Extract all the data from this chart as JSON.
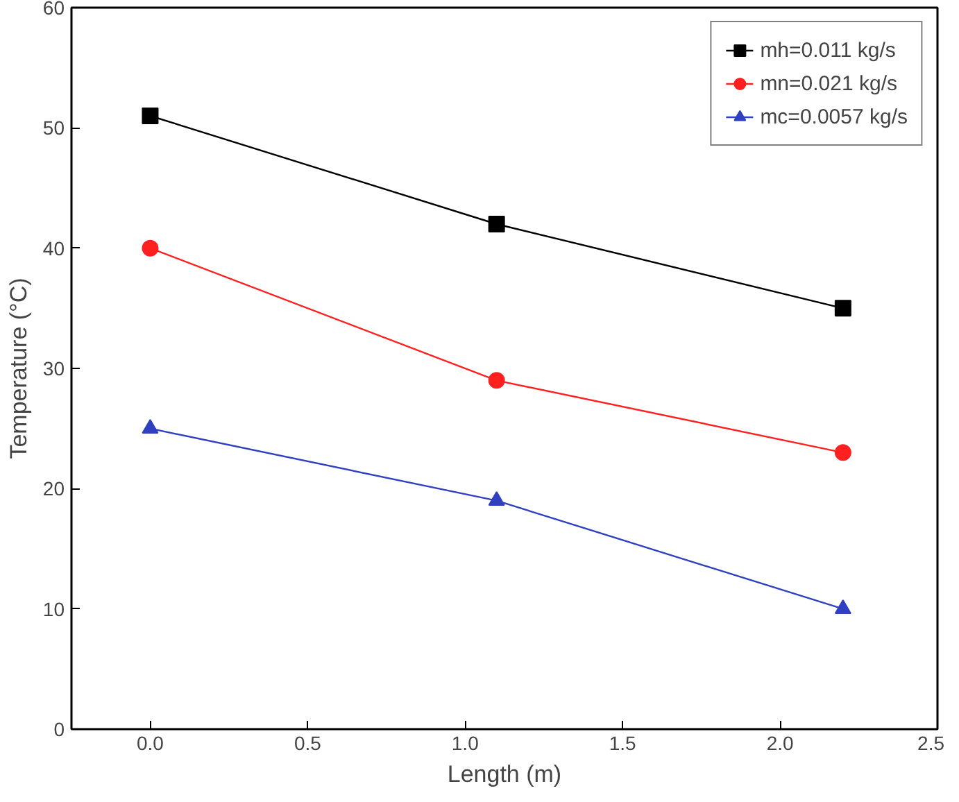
{
  "chart_data": {
    "type": "line",
    "xlabel": "Length (m)",
    "ylabel": "Temperature (°C)",
    "xlim": [
      -0.25,
      2.5
    ],
    "ylim": [
      0,
      60
    ],
    "xticks": [
      {
        "value": 0,
        "label": "0.0"
      },
      {
        "value": 0.5,
        "label": "0.5"
      },
      {
        "value": 1,
        "label": "1.0"
      },
      {
        "value": 1.5,
        "label": "1.5"
      },
      {
        "value": 2,
        "label": "2.0"
      },
      {
        "value": 2.5,
        "label": "2.5"
      }
    ],
    "yticks": [
      0,
      10,
      20,
      30,
      40,
      50,
      60
    ],
    "x": [
      0,
      1.1,
      2.2
    ],
    "series": [
      {
        "name": "mh=0.011 kg/s",
        "color": "#000000",
        "marker": "square",
        "values": [
          51,
          42,
          35
        ]
      },
      {
        "name": "mn=0.021 kg/s",
        "color": "#ff2020",
        "marker": "circle",
        "values": [
          40,
          29,
          23
        ]
      },
      {
        "name": "mc=0.0057 kg/s",
        "color": "#3040c0",
        "marker": "triangle",
        "values": [
          25,
          19,
          10
        ]
      }
    ],
    "grid": false,
    "legend": "top right",
    "line_style": "solid"
  }
}
